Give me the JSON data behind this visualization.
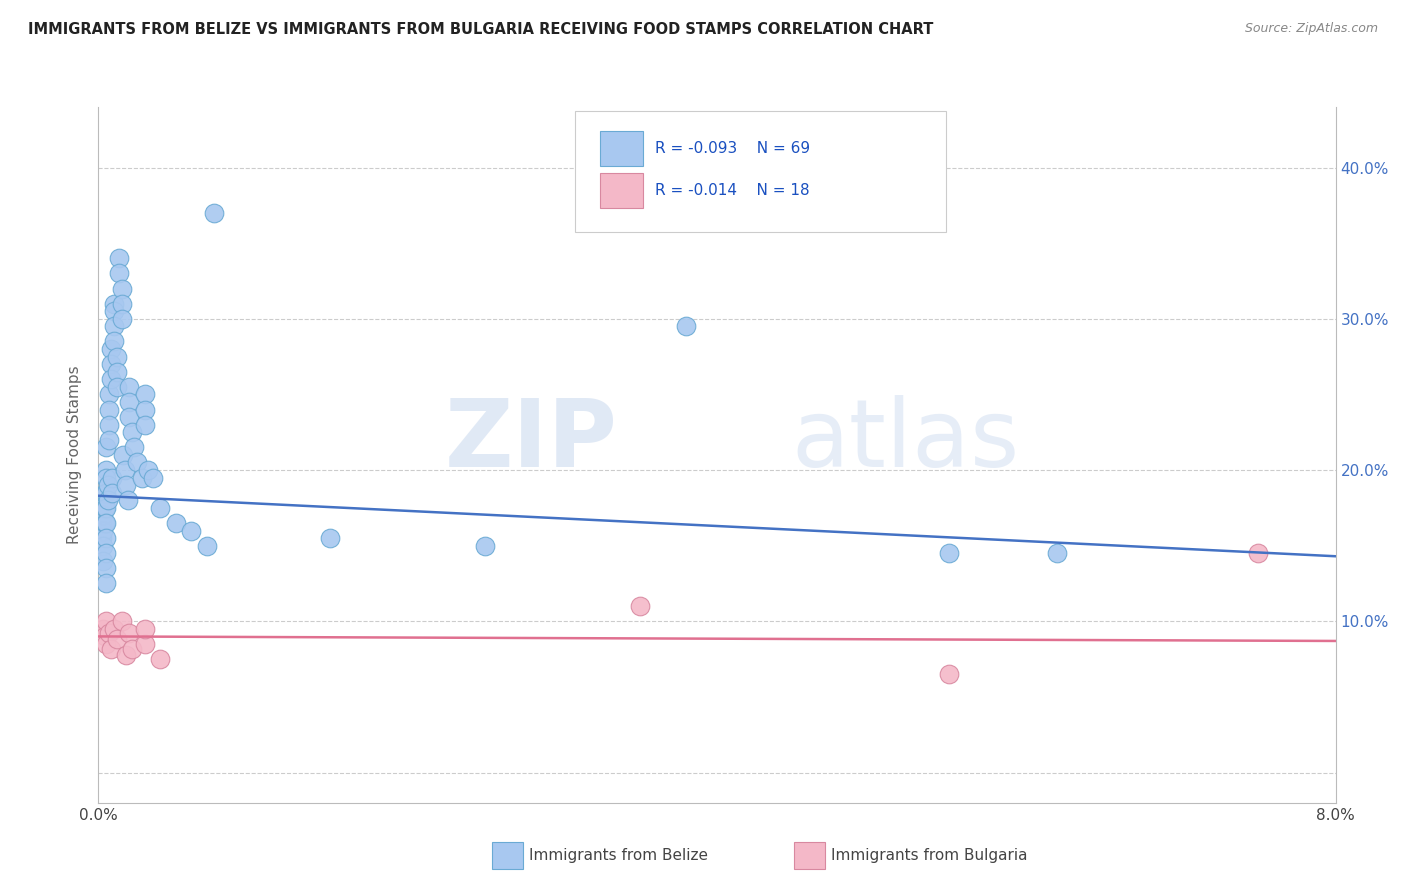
{
  "title": "IMMIGRANTS FROM BELIZE VS IMMIGRANTS FROM BULGARIA RECEIVING FOOD STAMPS CORRELATION CHART",
  "source": "Source: ZipAtlas.com",
  "ylabel": "Receiving Food Stamps",
  "xlim": [
    0.0,
    0.08
  ],
  "ylim": [
    -0.02,
    0.44
  ],
  "xticks": [
    0.0,
    0.01,
    0.02,
    0.03,
    0.04,
    0.05,
    0.06,
    0.07,
    0.08
  ],
  "xticklabels": [
    "0.0%",
    "",
    "",
    "",
    "",
    "",
    "",
    "",
    "8.0%"
  ],
  "yticks_right": [
    0.1,
    0.2,
    0.3,
    0.4
  ],
  "yticklabels_right": [
    "10.0%",
    "20.0%",
    "30.0%",
    "40.0%"
  ],
  "legend_label1": "Immigrants from Belize",
  "legend_label2": "Immigrants from Bulgaria",
  "R1": "-0.093",
  "N1": "69",
  "R2": "-0.014",
  "N2": "18",
  "color_belize": "#a8c8f0",
  "color_belize_edge": "#6aaad4",
  "color_belize_line": "#4472c4",
  "color_bulgaria": "#f4b8c8",
  "color_bulgaria_edge": "#d888a0",
  "color_bulgaria_line": "#e07090",
  "watermark_zip": "ZIP",
  "watermark_atlas": "atlas",
  "belize_x": [
    0.0002,
    0.0002,
    0.0002,
    0.0003,
    0.0003,
    0.0003,
    0.0003,
    0.0004,
    0.0004,
    0.0004,
    0.0005,
    0.0005,
    0.0005,
    0.0005,
    0.0005,
    0.0005,
    0.0005,
    0.0005,
    0.0005,
    0.0005,
    0.0006,
    0.0006,
    0.0007,
    0.0007,
    0.0007,
    0.0007,
    0.0008,
    0.0008,
    0.0008,
    0.0009,
    0.0009,
    0.001,
    0.001,
    0.001,
    0.001,
    0.0012,
    0.0012,
    0.0012,
    0.0013,
    0.0013,
    0.0015,
    0.0015,
    0.0015,
    0.0016,
    0.0017,
    0.0018,
    0.0019,
    0.002,
    0.002,
    0.002,
    0.0022,
    0.0023,
    0.0025,
    0.0028,
    0.003,
    0.003,
    0.003,
    0.0032,
    0.0035,
    0.004,
    0.005,
    0.006,
    0.007,
    0.0075,
    0.015,
    0.025,
    0.038,
    0.055,
    0.062
  ],
  "belize_y": [
    0.175,
    0.165,
    0.155,
    0.17,
    0.16,
    0.15,
    0.14,
    0.185,
    0.175,
    0.165,
    0.215,
    0.2,
    0.195,
    0.185,
    0.175,
    0.165,
    0.155,
    0.145,
    0.135,
    0.125,
    0.19,
    0.18,
    0.25,
    0.24,
    0.23,
    0.22,
    0.28,
    0.27,
    0.26,
    0.195,
    0.185,
    0.31,
    0.305,
    0.295,
    0.285,
    0.275,
    0.265,
    0.255,
    0.34,
    0.33,
    0.32,
    0.31,
    0.3,
    0.21,
    0.2,
    0.19,
    0.18,
    0.255,
    0.245,
    0.235,
    0.225,
    0.215,
    0.205,
    0.195,
    0.25,
    0.24,
    0.23,
    0.2,
    0.195,
    0.175,
    0.165,
    0.16,
    0.15,
    0.37,
    0.155,
    0.15,
    0.295,
    0.145,
    0.145
  ],
  "bulgaria_x": [
    0.0003,
    0.0004,
    0.0005,
    0.0005,
    0.0007,
    0.0008,
    0.001,
    0.0012,
    0.0015,
    0.0018,
    0.002,
    0.0022,
    0.003,
    0.003,
    0.004,
    0.035,
    0.055,
    0.075
  ],
  "bulgaria_y": [
    0.095,
    0.09,
    0.1,
    0.085,
    0.092,
    0.082,
    0.095,
    0.088,
    0.1,
    0.078,
    0.092,
    0.082,
    0.085,
    0.095,
    0.075,
    0.11,
    0.065,
    0.145
  ],
  "belize_line_x": [
    0.0,
    0.08
  ],
  "belize_line_y": [
    0.183,
    0.143
  ],
  "bulgaria_line_x": [
    0.0,
    0.08
  ],
  "bulgaria_line_y": [
    0.09,
    0.087
  ]
}
